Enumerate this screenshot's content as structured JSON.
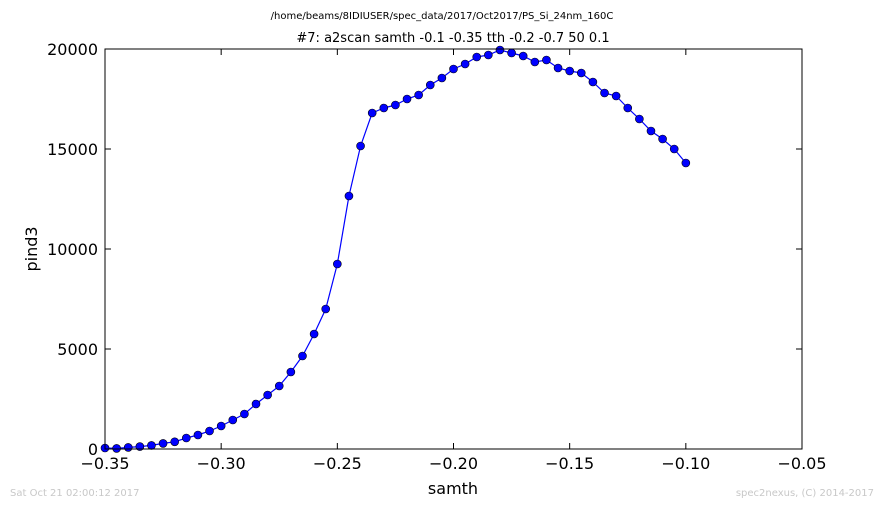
{
  "chart_data": {
    "type": "line",
    "title": "/home/beams/8IDIUSER/spec_data/2017/Oct2017/PS_Si_24nm_160C",
    "subtitle": "#7: a2scan  samth -0.1 -0.35  tth -0.2 -0.7  50 0.1",
    "xlabel": "samth",
    "ylabel": "pind3",
    "xlim": [
      -0.35,
      -0.05
    ],
    "ylim": [
      0,
      20000
    ],
    "xticks": [
      -0.35,
      -0.3,
      -0.25,
      -0.2,
      -0.15,
      -0.1,
      -0.05
    ],
    "xtick_labels": [
      "−0.35",
      "−0.30",
      "−0.25",
      "−0.20",
      "−0.15",
      "−0.10",
      "−0.05"
    ],
    "yticks": [
      0,
      5000,
      10000,
      15000,
      20000
    ],
    "ytick_labels": [
      "0",
      "5000",
      "10000",
      "15000",
      "20000"
    ],
    "grid": false,
    "series": [
      {
        "color": "#0000ff",
        "marker": "circle",
        "x": [
          -0.35,
          -0.345,
          -0.34,
          -0.335,
          -0.33,
          -0.325,
          -0.32,
          -0.315,
          -0.31,
          -0.305,
          -0.3,
          -0.295,
          -0.29,
          -0.285,
          -0.28,
          -0.275,
          -0.27,
          -0.265,
          -0.26,
          -0.255,
          -0.25,
          -0.245,
          -0.24,
          -0.235,
          -0.23,
          -0.225,
          -0.22,
          -0.215,
          -0.21,
          -0.205,
          -0.2,
          -0.195,
          -0.19,
          -0.185,
          -0.18,
          -0.175,
          -0.17,
          -0.165,
          -0.16,
          -0.155,
          -0.15,
          -0.145,
          -0.14,
          -0.135,
          -0.13,
          -0.125,
          -0.12,
          -0.115,
          -0.11,
          -0.105,
          -0.1
        ],
        "y": [
          50,
          30,
          80,
          120,
          180,
          280,
          360,
          550,
          700,
          900,
          1150,
          1450,
          1750,
          2250,
          2700,
          3150,
          3850,
          4650,
          5750,
          7000,
          9250,
          12650,
          15150,
          16800,
          17050,
          17200,
          17500,
          17700,
          18200,
          18550,
          19000,
          19250,
          19600,
          19700,
          19950,
          19800,
          19650,
          19350,
          19450,
          19050,
          18900,
          18800,
          18350,
          17800,
          17650,
          17050,
          16500,
          15900,
          15500,
          15000,
          14300
        ]
      }
    ]
  },
  "footer": {
    "left": "Sat Oct 21 02:00:12 2017",
    "right": "spec2nexus, (C) 2014-2017"
  }
}
